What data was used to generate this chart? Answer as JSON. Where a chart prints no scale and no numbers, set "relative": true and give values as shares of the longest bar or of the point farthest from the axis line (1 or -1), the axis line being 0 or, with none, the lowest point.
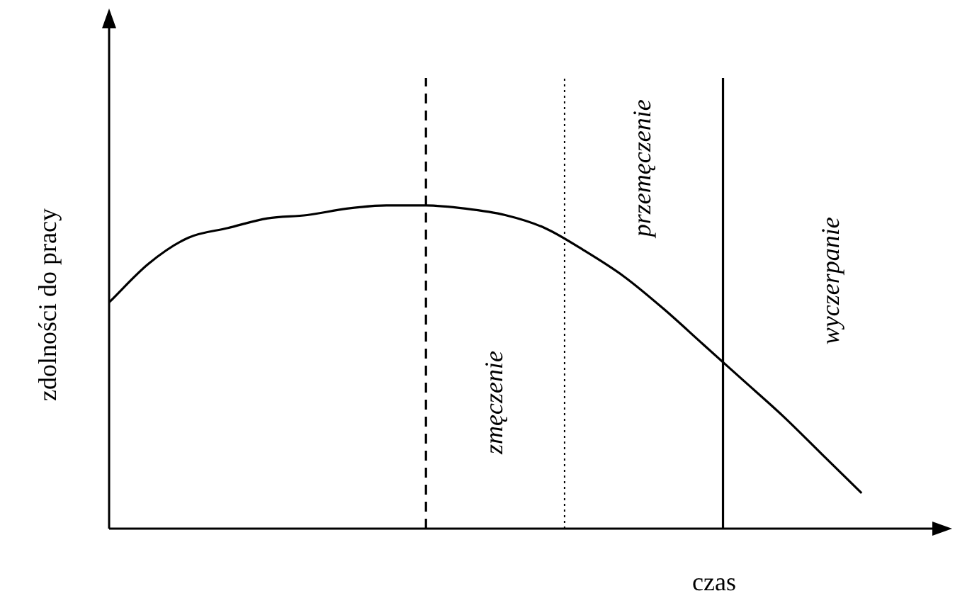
{
  "chart_data": {
    "type": "line",
    "relative": true,
    "xlabel": "czas",
    "ylabel": "zdolności do pracy",
    "categories": [
      null,
      null,
      null,
      null,
      null,
      null,
      null,
      null,
      null,
      null,
      null,
      null,
      null,
      null,
      null,
      null,
      null,
      null,
      null,
      null,
      null,
      null
    ],
    "series": [
      {
        "color": "#000000",
        "values": [
          0.7,
          0.82,
          0.9,
          0.93,
          0.96,
          0.97,
          0.99,
          1.0,
          1.0,
          0.99,
          0.97,
          0.93,
          0.86,
          0.78,
          0.68,
          0.57,
          0.46,
          0.35,
          0.23,
          0.11,
          null,
          null
        ]
      }
    ],
    "annotations": [
      "zmęczenie",
      "przemęczenie",
      "wyczerpanie"
    ],
    "legend": false,
    "marker": "none",
    "line_style": "solid"
  }
}
